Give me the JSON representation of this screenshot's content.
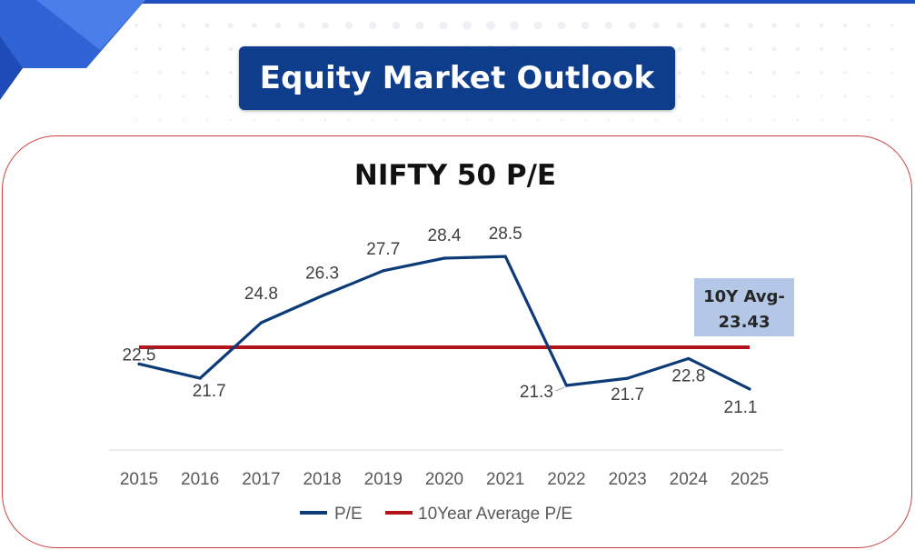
{
  "header": {
    "title": "Equity Market Outlook"
  },
  "colors": {
    "banner": "#0e3d8c",
    "pe_line": "#0d3b78",
    "avg_line": "#b3141b",
    "callout_bg": "#b4c7e7",
    "card_border": "#c9423f",
    "accent_blue": "#1f4fbf"
  },
  "chart_data": {
    "type": "line",
    "title": "NIFTY 50 P/E",
    "categories": [
      "2015",
      "2016",
      "2017",
      "2018",
      "2019",
      "2020",
      "2021",
      "2022",
      "2023",
      "2024",
      "2025"
    ],
    "series": [
      {
        "name": "P/E",
        "values": [
          22.5,
          21.7,
          24.8,
          26.3,
          27.7,
          28.4,
          28.5,
          21.3,
          21.7,
          22.8,
          21.1
        ],
        "color": "#0d3b78"
      },
      {
        "name": "10Year Average P/E",
        "values": [
          23.43,
          23.43,
          23.43,
          23.43,
          23.43,
          23.43,
          23.43,
          23.43,
          23.43,
          23.43,
          23.43
        ],
        "color": "#b3141b"
      }
    ],
    "data_labels": [
      "22.5",
      "21.7",
      "24.8",
      "26.3",
      "27.7",
      "28.4",
      "28.5",
      "21.3",
      "21.7",
      "22.8",
      "21.1"
    ],
    "annotation": {
      "lines": [
        "10Y Avg-",
        "23.43"
      ]
    },
    "legend": {
      "position": "bottom",
      "items": [
        "P/E",
        "10Year Average P/E"
      ]
    },
    "ylim": [
      17.5,
      31.5
    ],
    "grid": false,
    "xlabel": "",
    "ylabel": ""
  }
}
